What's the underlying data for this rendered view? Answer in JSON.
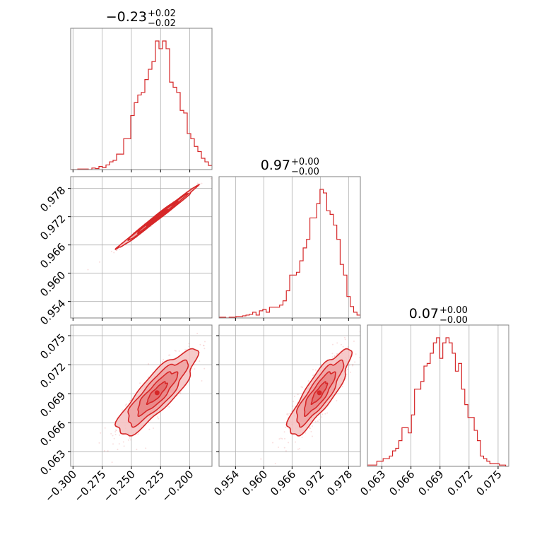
{
  "colors": {
    "accent": "#d62728",
    "fill_light": "#f5c1c1",
    "fill_dark": "#e36b6b",
    "grid": "#b0b0b0",
    "axis": "#808080",
    "background": "#ffffff"
  },
  "titles": [
    {
      "value": "−0.23",
      "plus": "+0.02",
      "minus": "−0.02"
    },
    {
      "value": "0.97",
      "plus": "+0.00",
      "minus": "−0.00"
    },
    {
      "value": "0.07",
      "plus": "+0.00",
      "minus": "−0.00"
    }
  ],
  "chart_data": {
    "type": "corner",
    "parameters": [
      {
        "range": [
          -0.302,
          -0.181
        ],
        "ticks": [
          -0.3,
          -0.275,
          -0.25,
          -0.225,
          -0.2
        ],
        "tick_labels": [
          "−0.300",
          "−0.275",
          "−0.250",
          "−0.225",
          "−0.200"
        ],
        "mean": -0.228,
        "sd": 0.017
      },
      {
        "range": [
          0.9505,
          0.9805
        ],
        "ticks": [
          0.954,
          0.96,
          0.966,
          0.972,
          0.978
        ],
        "tick_labels": [
          "0.954",
          "0.960",
          "0.966",
          "0.972",
          "0.978"
        ],
        "mean": 0.9718,
        "sd": 0.0033
      },
      {
        "range": [
          0.0615,
          0.0761
        ],
        "ticks": [
          0.063,
          0.066,
          0.069,
          0.072,
          0.075
        ],
        "tick_labels": [
          "0.063",
          "0.066",
          "0.069",
          "0.072",
          "0.075"
        ],
        "mean": 0.0691,
        "sd": 0.0022
      }
    ],
    "histograms": [
      {
        "param": 0,
        "counts": [
          0,
          0,
          1,
          1,
          1,
          0,
          3,
          2,
          6,
          4,
          9,
          15,
          18,
          30,
          30,
          60,
          60,
          105,
          130,
          145,
          150,
          175,
          195,
          210,
          250,
          235,
          250,
          235,
          170,
          160,
          150,
          115,
          110,
          70,
          60,
          45,
          35,
          22,
          15,
          8
        ]
      },
      {
        "param": 1,
        "counts": [
          1,
          1,
          0,
          1,
          1,
          2,
          2,
          3,
          4,
          5,
          8,
          4,
          10,
          12,
          8,
          15,
          15,
          15,
          18,
          24,
          38,
          60,
          60,
          64,
          80,
          98,
          110,
          140,
          140,
          160,
          180,
          175,
          150,
          145,
          130,
          110,
          75,
          60,
          30,
          16,
          8,
          4
        ]
      },
      {
        "param": 2,
        "counts": [
          1,
          1,
          1,
          4,
          4,
          6,
          6,
          8,
          12,
          14,
          20,
          30,
          30,
          26,
          40,
          60,
          60,
          66,
          78,
          80,
          88,
          96,
          100,
          84,
          96,
          100,
          96,
          88,
          74,
          80,
          60,
          48,
          38,
          38,
          28,
          20,
          8,
          6,
          4,
          2,
          2,
          2,
          1,
          1,
          0
        ]
      }
    ],
    "correlations": {
      "p0_p1": 0.995,
      "p0_p2": 0.85,
      "p1_p2": 0.85
    }
  }
}
